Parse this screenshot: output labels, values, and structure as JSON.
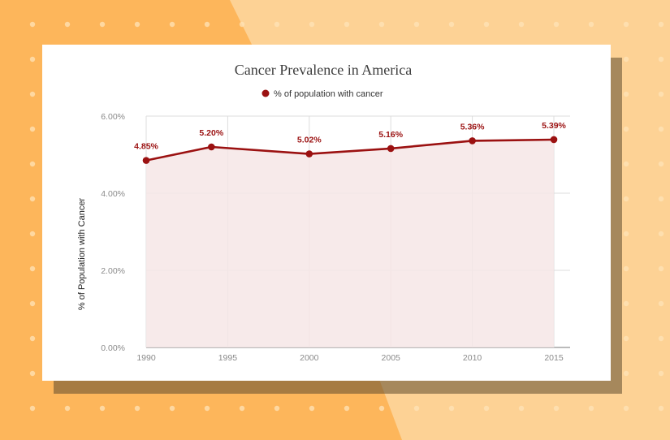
{
  "colors": {
    "page_background": "#fdd295",
    "background_orange": "#fdb65b",
    "background_dots": "#fee3b8",
    "card_background": "#ffffff",
    "series_line": "#9b1111",
    "area_fill": "#f6e6e6",
    "gridline": "#dddddd"
  },
  "chart_data": {
    "type": "line",
    "title": "Cancer Prevalence in America",
    "xlabel": "",
    "ylabel": "% of Population with Cancer",
    "x": [
      1990,
      1994,
      2000,
      2005,
      2010,
      2015
    ],
    "x_ticks": [
      "1990",
      "1995",
      "2000",
      "2005",
      "2010",
      "2015"
    ],
    "xlim": [
      1990,
      2015
    ],
    "ylim": [
      0,
      6
    ],
    "y_ticks": [
      "0.00%",
      "2.00%",
      "4.00%",
      "6.00%"
    ],
    "series": [
      {
        "name": "% of population with cancer",
        "values": [
          4.85,
          5.2,
          5.02,
          5.16,
          5.36,
          5.39
        ],
        "data_labels": [
          "4.85%",
          "5.20%",
          "5.02%",
          "5.16%",
          "5.36%",
          "5.39%"
        ]
      }
    ],
    "area_fill": true,
    "grid": true,
    "legend_position": "top"
  }
}
